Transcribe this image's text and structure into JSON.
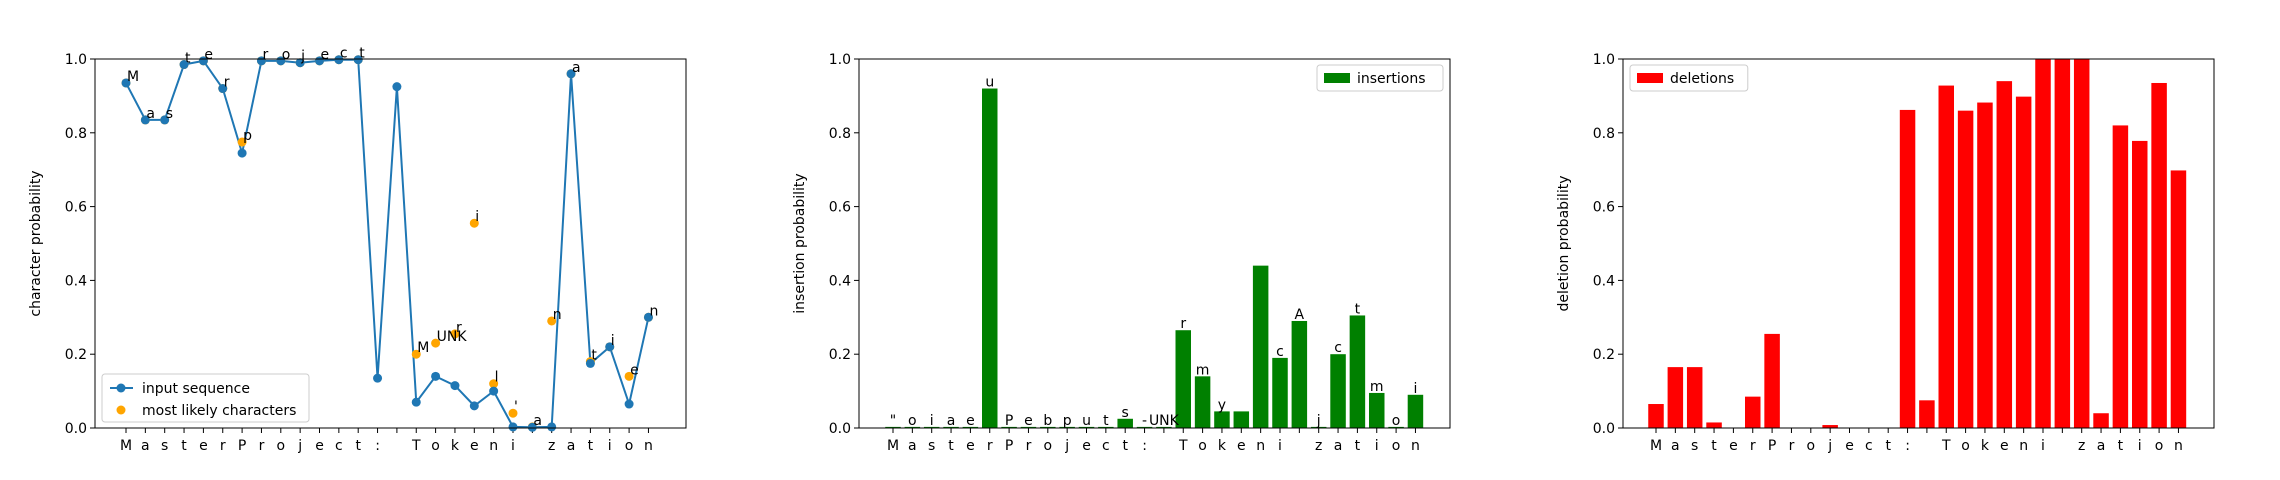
{
  "chart_data": [
    {
      "type": "line",
      "ylabel": "character probability",
      "ylim": [
        0,
        1
      ],
      "yticks": [
        "0.0",
        "0.2",
        "0.4",
        "0.6",
        "0.8",
        "1.0"
      ],
      "categories": [
        "M",
        "a",
        "s",
        "t",
        "e",
        "r",
        "P",
        "r",
        "o",
        "j",
        "e",
        "c",
        "t",
        ":",
        "",
        "T",
        "o",
        "k",
        "e",
        "n",
        "i",
        "",
        "z",
        "a",
        "t",
        "i",
        "o",
        "n"
      ],
      "series": [
        {
          "name": "input sequence",
          "color": "#1f77b4",
          "values": [
            0.935,
            0.835,
            0.835,
            0.985,
            0.995,
            0.92,
            0.745,
            0.995,
            0.995,
            0.99,
            0.995,
            0.998,
            0.998,
            0.135,
            0.925,
            0.07,
            0.14,
            0.115,
            0.06,
            0.1,
            0.003,
            0.002,
            0.003,
            0.96,
            0.175,
            0.22,
            0.065,
            0.3
          ]
        },
        {
          "name": "most likely characters",
          "color": "#ffa500",
          "values": [
            0.935,
            0.835,
            0.835,
            0.985,
            0.995,
            0.92,
            0.775,
            0.995,
            0.995,
            0.99,
            0.995,
            0.998,
            0.998,
            null,
            null,
            0.2,
            0.23,
            0.255,
            0.555,
            0.12,
            0.04,
            0.003,
            0.29,
            0.96,
            0.18,
            0.22,
            0.14,
            0.3
          ],
          "labels": [
            "M",
            "a",
            "s",
            "t",
            "e",
            "r",
            "p",
            "r",
            "o",
            "j",
            "e",
            "c",
            "t",
            "",
            "",
            "M",
            "UNK",
            "r",
            "i",
            "l",
            "'",
            "a",
            "n",
            "a",
            "t",
            "i",
            "e",
            "n"
          ]
        }
      ],
      "legend": "lower-left"
    },
    {
      "type": "bar",
      "ylabel": "insertion probability",
      "ylim": [
        0,
        1
      ],
      "yticks": [
        "0.0",
        "0.2",
        "0.4",
        "0.6",
        "0.8",
        "1.0"
      ],
      "categories": [
        "M",
        "a",
        "s",
        "t",
        "e",
        "r",
        "P",
        "r",
        "o",
        "j",
        "e",
        "c",
        "t",
        ":",
        "",
        "T",
        "o",
        "k",
        "e",
        "n",
        "i",
        "",
        "z",
        "a",
        "t",
        "i",
        "o",
        "n"
      ],
      "series": [
        {
          "name": "insertions",
          "color": "#008000",
          "values": [
            0.003,
            0.003,
            0.003,
            0.003,
            0.003,
            0.92,
            0.003,
            0.003,
            0.003,
            0.003,
            0.003,
            0.003,
            0.025,
            0.003,
            0.003,
            0.265,
            0.14,
            0.045,
            0.045,
            0.44,
            0.19,
            0.29,
            0.003,
            0.2,
            0.305,
            0.095,
            0.003,
            0.09
          ],
          "labels": [
            "\"",
            "o",
            "i",
            "a",
            "e",
            "u",
            "P",
            "e",
            "b",
            "p",
            "u",
            "t",
            "s",
            "-",
            "UNK",
            "r",
            "m",
            "y",
            "",
            "",
            "c",
            "A",
            "j",
            "c",
            "t",
            "m",
            "o",
            "i"
          ]
        }
      ],
      "legend": "upper-right"
    },
    {
      "type": "bar",
      "ylabel": "deletion probability",
      "ylim": [
        0,
        1
      ],
      "yticks": [
        "0.0",
        "0.2",
        "0.4",
        "0.6",
        "0.8",
        "1.0"
      ],
      "categories": [
        "M",
        "a",
        "s",
        "t",
        "e",
        "r",
        "P",
        "r",
        "o",
        "j",
        "e",
        "c",
        "t",
        ":",
        "",
        "T",
        "o",
        "k",
        "e",
        "n",
        "i",
        "",
        "z",
        "a",
        "t",
        "i",
        "o",
        "n"
      ],
      "series": [
        {
          "name": "deletions",
          "color": "#ff0000",
          "values": [
            0.065,
            0.165,
            0.165,
            0.015,
            0.001,
            0.085,
            0.255,
            0.001,
            0.001,
            0.008,
            0.001,
            0.001,
            0.001,
            0.862,
            0.075,
            0.928,
            0.86,
            0.882,
            0.94,
            0.898,
            1.0,
            1.0,
            1.0,
            0.04,
            0.82,
            0.778,
            0.935,
            0.698
          ]
        }
      ],
      "legend": "upper-left"
    }
  ]
}
